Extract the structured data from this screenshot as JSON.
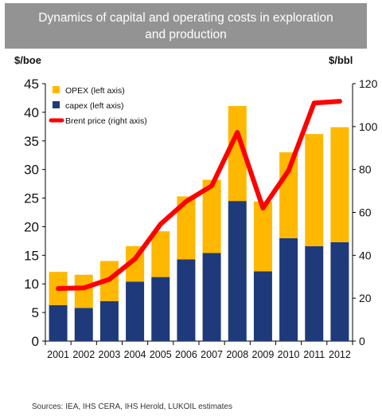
{
  "title": "Dynamics of capital and operating costs in exploration and production",
  "source": "Sources: IEA, IHS CERA, IHS Herold, LUKOIL estimates",
  "colors": {
    "opex": "#FFB800",
    "capex": "#1F3A7A",
    "brent": "#FF0000",
    "title_bg": "#939393"
  },
  "chart_data": {
    "type": "bar",
    "categories": [
      "2001",
      "2002",
      "2003",
      "2004",
      "2005",
      "2006",
      "2007",
      "2008",
      "2009",
      "2010",
      "2011",
      "2012"
    ],
    "series": [
      {
        "name": "capex (left axis)",
        "kind": "bar-stack",
        "axis": "left",
        "values": [
          6.3,
          5.8,
          7.0,
          10.4,
          11.2,
          14.3,
          15.4,
          24.5,
          12.2,
          18.0,
          16.6,
          17.3
        ]
      },
      {
        "name": "OPEX (left axis)",
        "kind": "bar-stack",
        "axis": "left",
        "values": [
          5.8,
          5.8,
          7.0,
          6.2,
          8.0,
          11.0,
          12.8,
          16.6,
          12.2,
          15.0,
          19.6,
          20.1
        ]
      },
      {
        "name": "Brent price (right axis)",
        "kind": "line",
        "axis": "right",
        "values": [
          24.5,
          24.8,
          28.8,
          38.3,
          54.5,
          65.1,
          72.4,
          97.3,
          62.0,
          79.5,
          111.0,
          111.8
        ]
      }
    ],
    "legend": [
      "OPEX (left axis)",
      "capex (left axis)",
      "Brent price (right axis)"
    ],
    "legend_position": "top-left",
    "y_left": {
      "label": "$/boe",
      "min": 0,
      "max": 45,
      "ticks": [
        0,
        5,
        10,
        15,
        20,
        25,
        30,
        35,
        40,
        45
      ]
    },
    "y_right": {
      "label": "$/bbl",
      "min": 0,
      "max": 120,
      "ticks": [
        0,
        20,
        40,
        60,
        80,
        100,
        120
      ]
    },
    "grid": false
  }
}
